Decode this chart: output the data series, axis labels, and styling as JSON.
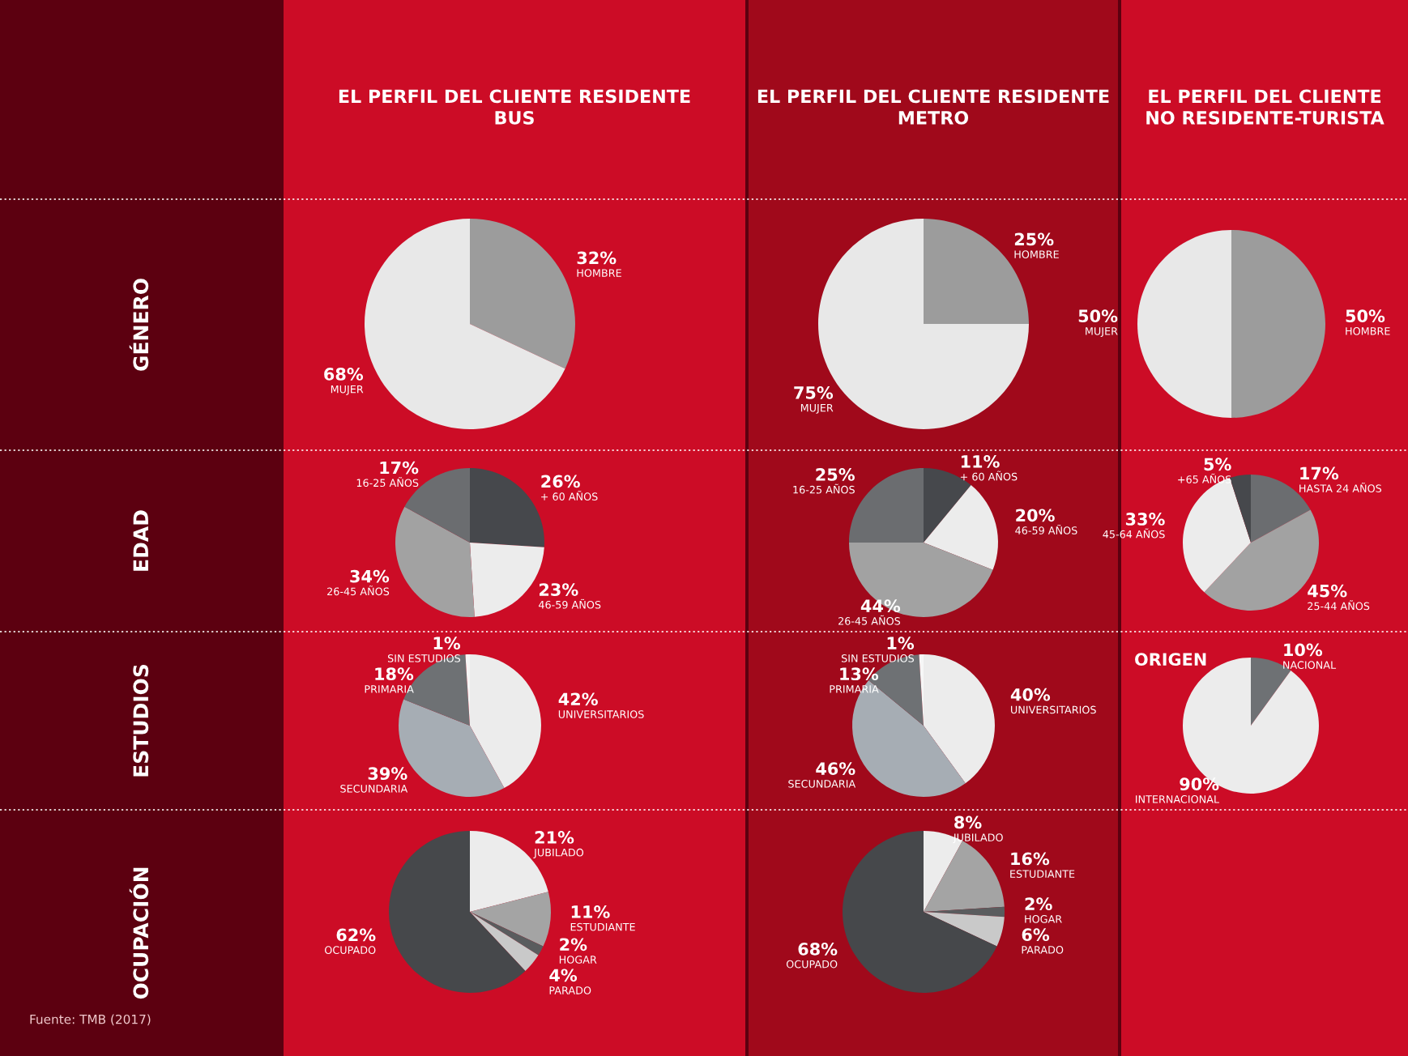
{
  "chart_data": [
    {
      "type": "pie",
      "title": "EL PERFIL DEL CLIENTE RESIDENTE\nBUS",
      "ylabel": "GÉNERO",
      "categories": [
        "HOMBRE",
        "MUJER"
      ],
      "values": [
        32,
        68
      ],
      "value_labels": [
        "32%",
        "68%"
      ],
      "colors": [
        "#9c9c9c",
        "#e8e8e8"
      ]
    },
    {
      "type": "pie",
      "title": "EL PERFIL DEL CLIENTE RESIDENTE\nMETRO",
      "categories": [
        "HOMBRE",
        "MUJER"
      ],
      "values": [
        25,
        75
      ],
      "value_labels": [
        "25%",
        "75%"
      ],
      "colors": [
        "#9c9c9c",
        "#e8e8e8"
      ]
    },
    {
      "type": "pie",
      "title": "EL PERFIL DEL CLIENTE\nNO RESIDENTE-TURISTA",
      "categories": [
        "HOMBRE",
        "MUJER"
      ],
      "values": [
        50,
        50
      ],
      "value_labels": [
        "50%",
        "50%"
      ],
      "colors": [
        "#9c9c9c",
        "#e8e8e8"
      ]
    },
    {
      "type": "pie",
      "ylabel": "EDAD",
      "categories": [
        "+ 60 AÑOS",
        "46-59 AÑOS",
        "26-45 AÑOS",
        "16-25 AÑOS"
      ],
      "values": [
        26,
        23,
        34,
        17
      ],
      "value_labels": [
        "26%",
        "23%",
        "34%",
        "17%"
      ],
      "colors": [
        "#46484c",
        "#ececec",
        "#a2a2a2",
        "#6b6d70"
      ]
    },
    {
      "type": "pie",
      "categories": [
        "+ 60 AÑOS",
        "46-59 AÑOS",
        "26-45 AÑOS",
        "16-25 AÑOS"
      ],
      "values": [
        11,
        20,
        44,
        25
      ],
      "value_labels": [
        "11%",
        "20%",
        "44%",
        "25%"
      ],
      "colors": [
        "#46484c",
        "#ececec",
        "#a2a2a2",
        "#6b6d70"
      ]
    },
    {
      "type": "pie",
      "categories": [
        "HASTA 24 AÑOS",
        "25-44 AÑOS",
        "45-64 AÑOS",
        "+65 AÑOS"
      ],
      "values": [
        17,
        45,
        33,
        5
      ],
      "value_labels": [
        "17%",
        "45%",
        "33%",
        "5%"
      ],
      "colors": [
        "#6b6d70",
        "#a2a2a2",
        "#ececec",
        "#46484c"
      ]
    },
    {
      "type": "pie",
      "ylabel": "ESTUDIOS",
      "categories": [
        "UNIVERSITARIOS",
        "SECUNDARIA",
        "PRIMARIA",
        "SIN ESTUDIOS"
      ],
      "values": [
        42,
        39,
        18,
        1
      ],
      "value_labels": [
        "42%",
        "39%",
        "18%",
        "1%"
      ],
      "colors": [
        "#ececec",
        "#a6adb4",
        "#6e7174",
        "#f6f6f6"
      ]
    },
    {
      "type": "pie",
      "categories": [
        "UNIVERSITARIOS",
        "SECUNDARIA",
        "PRIMARIA",
        "SIN ESTUDIOS"
      ],
      "values": [
        40,
        46,
        13,
        1
      ],
      "value_labels": [
        "40%",
        "46%",
        "13%",
        "1%"
      ],
      "colors": [
        "#ececec",
        "#a6adb4",
        "#6e7174",
        "#f6f6f6"
      ]
    },
    {
      "type": "pie",
      "title": "ORIGEN",
      "categories": [
        "NACIONAL",
        "INTERNACIONAL"
      ],
      "values": [
        10,
        90
      ],
      "value_labels": [
        "10%",
        "90%"
      ],
      "colors": [
        "#6e7174",
        "#ececec"
      ]
    },
    {
      "type": "pie",
      "ylabel": "OCUPACIÓN",
      "categories": [
        "JUBILADO",
        "ESTUDIANTE",
        "HOGAR",
        "PARADO",
        "OCUPADO"
      ],
      "values": [
        21,
        11,
        2,
        4,
        62
      ],
      "value_labels": [
        "21%",
        "11%",
        "2%",
        "4%",
        "62%"
      ],
      "colors": [
        "#ececec",
        "#a4a4a4",
        "#5a5c5e",
        "#c9c9c9",
        "#46484b"
      ],
      "annotations": [
        "Fuente: TMB (2017)"
      ]
    },
    {
      "type": "pie",
      "categories": [
        "JUBILADO",
        "ESTUDIANTE",
        "HOGAR",
        "PARADO",
        "OCUPADO"
      ],
      "values": [
        8,
        16,
        2,
        6,
        68
      ],
      "value_labels": [
        "8%",
        "16%",
        "2%",
        "6%",
        "68%"
      ],
      "colors": [
        "#ececec",
        "#a4a4a4",
        "#5a5c5e",
        "#c9c9c9",
        "#46484b"
      ]
    }
  ]
}
